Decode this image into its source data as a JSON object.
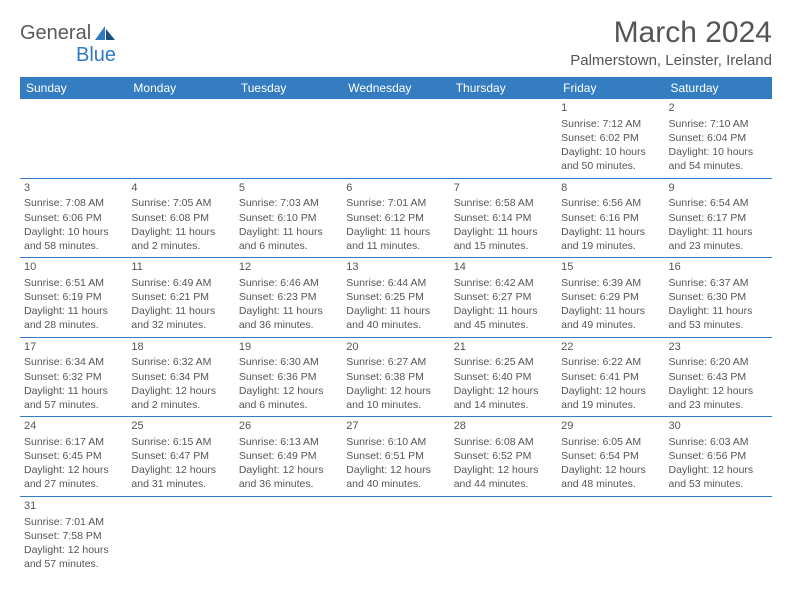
{
  "logo": {
    "word1": "General",
    "word2": "Blue"
  },
  "title": "March 2024",
  "location": "Palmerstown, Leinster, Ireland",
  "colors": {
    "header_bg": "#347dc1",
    "header_text": "#ffffff",
    "cell_border": "#347dc1",
    "text": "#555555",
    "logo_blue": "#2f7ac4"
  },
  "day_headers": [
    "Sunday",
    "Monday",
    "Tuesday",
    "Wednesday",
    "Thursday",
    "Friday",
    "Saturday"
  ],
  "weeks": [
    [
      null,
      null,
      null,
      null,
      null,
      {
        "n": "1",
        "sr": "Sunrise: 7:12 AM",
        "ss": "Sunset: 6:02 PM",
        "dl1": "Daylight: 10 hours",
        "dl2": "and 50 minutes."
      },
      {
        "n": "2",
        "sr": "Sunrise: 7:10 AM",
        "ss": "Sunset: 6:04 PM",
        "dl1": "Daylight: 10 hours",
        "dl2": "and 54 minutes."
      }
    ],
    [
      {
        "n": "3",
        "sr": "Sunrise: 7:08 AM",
        "ss": "Sunset: 6:06 PM",
        "dl1": "Daylight: 10 hours",
        "dl2": "and 58 minutes."
      },
      {
        "n": "4",
        "sr": "Sunrise: 7:05 AM",
        "ss": "Sunset: 6:08 PM",
        "dl1": "Daylight: 11 hours",
        "dl2": "and 2 minutes."
      },
      {
        "n": "5",
        "sr": "Sunrise: 7:03 AM",
        "ss": "Sunset: 6:10 PM",
        "dl1": "Daylight: 11 hours",
        "dl2": "and 6 minutes."
      },
      {
        "n": "6",
        "sr": "Sunrise: 7:01 AM",
        "ss": "Sunset: 6:12 PM",
        "dl1": "Daylight: 11 hours",
        "dl2": "and 11 minutes."
      },
      {
        "n": "7",
        "sr": "Sunrise: 6:58 AM",
        "ss": "Sunset: 6:14 PM",
        "dl1": "Daylight: 11 hours",
        "dl2": "and 15 minutes."
      },
      {
        "n": "8",
        "sr": "Sunrise: 6:56 AM",
        "ss": "Sunset: 6:16 PM",
        "dl1": "Daylight: 11 hours",
        "dl2": "and 19 minutes."
      },
      {
        "n": "9",
        "sr": "Sunrise: 6:54 AM",
        "ss": "Sunset: 6:17 PM",
        "dl1": "Daylight: 11 hours",
        "dl2": "and 23 minutes."
      }
    ],
    [
      {
        "n": "10",
        "sr": "Sunrise: 6:51 AM",
        "ss": "Sunset: 6:19 PM",
        "dl1": "Daylight: 11 hours",
        "dl2": "and 28 minutes."
      },
      {
        "n": "11",
        "sr": "Sunrise: 6:49 AM",
        "ss": "Sunset: 6:21 PM",
        "dl1": "Daylight: 11 hours",
        "dl2": "and 32 minutes."
      },
      {
        "n": "12",
        "sr": "Sunrise: 6:46 AM",
        "ss": "Sunset: 6:23 PM",
        "dl1": "Daylight: 11 hours",
        "dl2": "and 36 minutes."
      },
      {
        "n": "13",
        "sr": "Sunrise: 6:44 AM",
        "ss": "Sunset: 6:25 PM",
        "dl1": "Daylight: 11 hours",
        "dl2": "and 40 minutes."
      },
      {
        "n": "14",
        "sr": "Sunrise: 6:42 AM",
        "ss": "Sunset: 6:27 PM",
        "dl1": "Daylight: 11 hours",
        "dl2": "and 45 minutes."
      },
      {
        "n": "15",
        "sr": "Sunrise: 6:39 AM",
        "ss": "Sunset: 6:29 PM",
        "dl1": "Daylight: 11 hours",
        "dl2": "and 49 minutes."
      },
      {
        "n": "16",
        "sr": "Sunrise: 6:37 AM",
        "ss": "Sunset: 6:30 PM",
        "dl1": "Daylight: 11 hours",
        "dl2": "and 53 minutes."
      }
    ],
    [
      {
        "n": "17",
        "sr": "Sunrise: 6:34 AM",
        "ss": "Sunset: 6:32 PM",
        "dl1": "Daylight: 11 hours",
        "dl2": "and 57 minutes."
      },
      {
        "n": "18",
        "sr": "Sunrise: 6:32 AM",
        "ss": "Sunset: 6:34 PM",
        "dl1": "Daylight: 12 hours",
        "dl2": "and 2 minutes."
      },
      {
        "n": "19",
        "sr": "Sunrise: 6:30 AM",
        "ss": "Sunset: 6:36 PM",
        "dl1": "Daylight: 12 hours",
        "dl2": "and 6 minutes."
      },
      {
        "n": "20",
        "sr": "Sunrise: 6:27 AM",
        "ss": "Sunset: 6:38 PM",
        "dl1": "Daylight: 12 hours",
        "dl2": "and 10 minutes."
      },
      {
        "n": "21",
        "sr": "Sunrise: 6:25 AM",
        "ss": "Sunset: 6:40 PM",
        "dl1": "Daylight: 12 hours",
        "dl2": "and 14 minutes."
      },
      {
        "n": "22",
        "sr": "Sunrise: 6:22 AM",
        "ss": "Sunset: 6:41 PM",
        "dl1": "Daylight: 12 hours",
        "dl2": "and 19 minutes."
      },
      {
        "n": "23",
        "sr": "Sunrise: 6:20 AM",
        "ss": "Sunset: 6:43 PM",
        "dl1": "Daylight: 12 hours",
        "dl2": "and 23 minutes."
      }
    ],
    [
      {
        "n": "24",
        "sr": "Sunrise: 6:17 AM",
        "ss": "Sunset: 6:45 PM",
        "dl1": "Daylight: 12 hours",
        "dl2": "and 27 minutes."
      },
      {
        "n": "25",
        "sr": "Sunrise: 6:15 AM",
        "ss": "Sunset: 6:47 PM",
        "dl1": "Daylight: 12 hours",
        "dl2": "and 31 minutes."
      },
      {
        "n": "26",
        "sr": "Sunrise: 6:13 AM",
        "ss": "Sunset: 6:49 PM",
        "dl1": "Daylight: 12 hours",
        "dl2": "and 36 minutes."
      },
      {
        "n": "27",
        "sr": "Sunrise: 6:10 AM",
        "ss": "Sunset: 6:51 PM",
        "dl1": "Daylight: 12 hours",
        "dl2": "and 40 minutes."
      },
      {
        "n": "28",
        "sr": "Sunrise: 6:08 AM",
        "ss": "Sunset: 6:52 PM",
        "dl1": "Daylight: 12 hours",
        "dl2": "and 44 minutes."
      },
      {
        "n": "29",
        "sr": "Sunrise: 6:05 AM",
        "ss": "Sunset: 6:54 PM",
        "dl1": "Daylight: 12 hours",
        "dl2": "and 48 minutes."
      },
      {
        "n": "30",
        "sr": "Sunrise: 6:03 AM",
        "ss": "Sunset: 6:56 PM",
        "dl1": "Daylight: 12 hours",
        "dl2": "and 53 minutes."
      }
    ],
    [
      {
        "n": "31",
        "sr": "Sunrise: 7:01 AM",
        "ss": "Sunset: 7:58 PM",
        "dl1": "Daylight: 12 hours",
        "dl2": "and 57 minutes."
      },
      null,
      null,
      null,
      null,
      null,
      null
    ]
  ]
}
